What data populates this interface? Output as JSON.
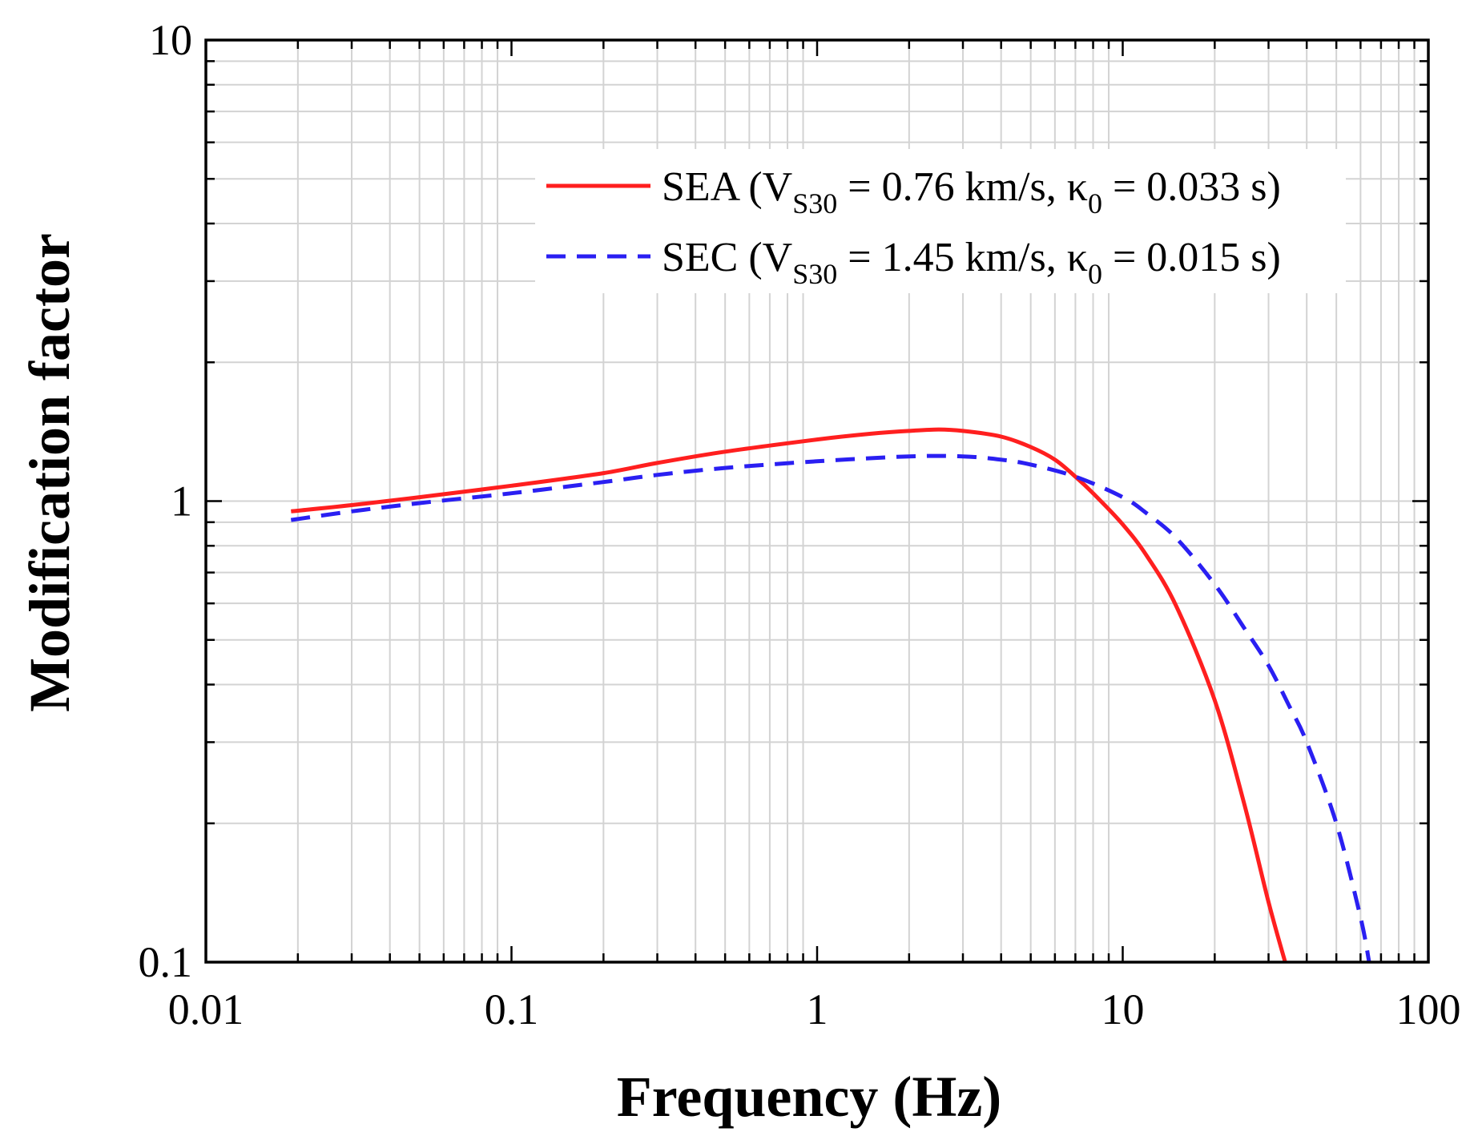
{
  "chart_data": {
    "type": "line",
    "title": "",
    "xlabel": "Frequency (Hz)",
    "ylabel": "Modification factor",
    "xscale": "log",
    "yscale": "log",
    "xlim": [
      0.01,
      100
    ],
    "ylim": [
      0.1,
      10
    ],
    "x_ticks": [
      {
        "value": 0.01,
        "label": "0.01"
      },
      {
        "value": 0.1,
        "label": "0.1"
      },
      {
        "value": 1,
        "label": "1"
      },
      {
        "value": 10,
        "label": "10"
      },
      {
        "value": 100,
        "label": "100"
      }
    ],
    "y_ticks": [
      {
        "value": 0.1,
        "label": "0.1"
      },
      {
        "value": 1,
        "label": "1"
      },
      {
        "value": 10,
        "label": "10"
      }
    ],
    "grid": true,
    "legend_position": "upper-right",
    "colors": {
      "axis": "#000000",
      "grid": "#d3d3d3"
    },
    "series": [
      {
        "name": "SEA",
        "legend": {
          "prefix": "SEA (V",
          "sub1": "S30",
          "mid": " = 0.76 km/s, κ",
          "sub2": "0",
          "suffix": " = 0.033 s)"
        },
        "color": "#ff1f1f",
        "dash": "solid",
        "x": [
          0.019,
          0.03,
          0.05,
          0.1,
          0.2,
          0.3,
          0.5,
          1,
          1.5,
          2,
          2.5,
          3,
          4,
          5,
          6,
          7,
          8,
          10,
          12,
          15,
          20,
          25,
          30,
          34
        ],
        "y": [
          0.95,
          0.98,
          1.02,
          1.08,
          1.15,
          1.21,
          1.28,
          1.36,
          1.4,
          1.42,
          1.43,
          1.42,
          1.38,
          1.31,
          1.23,
          1.13,
          1.04,
          0.89,
          0.76,
          0.59,
          0.37,
          0.22,
          0.135,
          0.1
        ]
      },
      {
        "name": "SEC",
        "legend": {
          "prefix": "SEC (V",
          "sub1": "S30",
          "mid": " = 1.45 km/s, κ",
          "sub2": "0",
          "suffix": " = 0.015 s)"
        },
        "color": "#2a1ff2",
        "dash": "dashed",
        "x": [
          0.019,
          0.03,
          0.05,
          0.1,
          0.2,
          0.3,
          0.5,
          1,
          2,
          3,
          4,
          5,
          7,
          10,
          12,
          15,
          20,
          25,
          30,
          35,
          40,
          50,
          60,
          64
        ],
        "y": [
          0.91,
          0.95,
          0.99,
          1.04,
          1.1,
          1.14,
          1.18,
          1.22,
          1.25,
          1.25,
          1.23,
          1.2,
          1.13,
          1.02,
          0.94,
          0.83,
          0.66,
          0.53,
          0.44,
          0.36,
          0.3,
          0.2,
          0.125,
          0.1
        ]
      }
    ]
  }
}
